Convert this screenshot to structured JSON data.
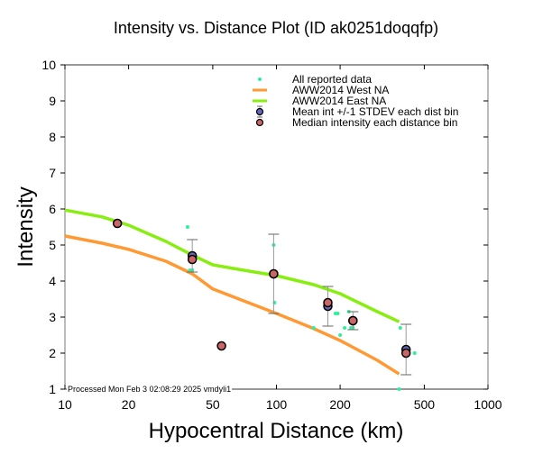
{
  "chart_data": {
    "type": "scatter",
    "title": "Intensity vs. Distance Plot (ID ak0251doqqfp)",
    "xlabel": "Hypocentral Distance (km)",
    "ylabel": "Intensity",
    "xscale": "log",
    "xlim": [
      10,
      1000
    ],
    "ylim": [
      1,
      10
    ],
    "xticks": [
      10,
      20,
      50,
      100,
      200,
      500,
      1000
    ],
    "xtick_labels": [
      "10",
      "20",
      "50",
      "100",
      "200",
      "500",
      "1000"
    ],
    "yticks": [
      1,
      2,
      3,
      4,
      5,
      6,
      7,
      8,
      9,
      10
    ],
    "ytick_labels": [
      "1",
      "2",
      "3",
      "4",
      "5",
      "6",
      "7",
      "8",
      "9",
      "10"
    ],
    "grid": false,
    "legend_position": "top-right",
    "legend": [
      {
        "label": "All reported data",
        "marker": "dot",
        "color": "#33ee99"
      },
      {
        "label": "AWW2014 West NA",
        "marker": "line",
        "color": "#ff9933"
      },
      {
        "label": "AWW2014 East NA",
        "marker": "line",
        "color": "#88ee11"
      },
      {
        "label": "Mean int +/-1 STDEV each dist bin",
        "marker": "circle-errorbar",
        "color": "#6666bb"
      },
      {
        "label": "Median intensity each distance bin",
        "marker": "circle",
        "color": "#cc6666"
      }
    ],
    "series": [
      {
        "name": "AWW2014 West NA",
        "kind": "line",
        "color": "#ff9933",
        "x": [
          10,
          15,
          20,
          30,
          40,
          50,
          70,
          100,
          150,
          200,
          300,
          380
        ],
        "y": [
          5.25,
          5.05,
          4.88,
          4.55,
          4.2,
          3.78,
          3.45,
          3.1,
          2.68,
          2.35,
          1.8,
          1.42
        ]
      },
      {
        "name": "AWW2014 East NA",
        "kind": "line",
        "color": "#88ee11",
        "x": [
          10,
          15,
          20,
          30,
          40,
          50,
          70,
          100,
          150,
          200,
          300,
          380
        ],
        "y": [
          5.97,
          5.78,
          5.55,
          5.1,
          4.72,
          4.45,
          4.3,
          4.15,
          3.9,
          3.65,
          3.15,
          2.87
        ]
      },
      {
        "name": "All reported data",
        "kind": "points",
        "color": "#33ee99",
        "x": [
          38,
          39,
          40,
          40,
          97,
          98,
          150,
          175,
          190,
          195,
          200,
          210,
          220,
          225,
          230,
          380,
          385,
          450
        ],
        "y": [
          5.5,
          4.3,
          4.75,
          4.3,
          5.0,
          3.4,
          2.7,
          3.4,
          3.1,
          3.1,
          2.5,
          2.7,
          3.15,
          2.7,
          2.7,
          1.0,
          2.7,
          2.0
        ]
      },
      {
        "name": "Mean int +/-1 STDEV each dist bin",
        "kind": "errorbar",
        "color": "#6666bb",
        "x": [
          40,
          97,
          175,
          230,
          410
        ],
        "y": [
          4.7,
          4.2,
          3.3,
          2.9,
          2.1
        ],
        "y_low": [
          4.25,
          3.1,
          2.75,
          2.65,
          1.4
        ],
        "y_high": [
          5.15,
          5.3,
          3.85,
          3.15,
          2.8
        ]
      },
      {
        "name": "Median intensity each distance bin",
        "kind": "points",
        "color": "#cc6666",
        "x": [
          17.7,
          40,
          55,
          97,
          175,
          230,
          410
        ],
        "y": [
          5.6,
          4.6,
          2.2,
          4.2,
          3.4,
          2.9,
          2.0
        ]
      }
    ],
    "annotations": [
      "Processed Mon Feb  3 02:08:29 2025 vmdyli1"
    ]
  }
}
